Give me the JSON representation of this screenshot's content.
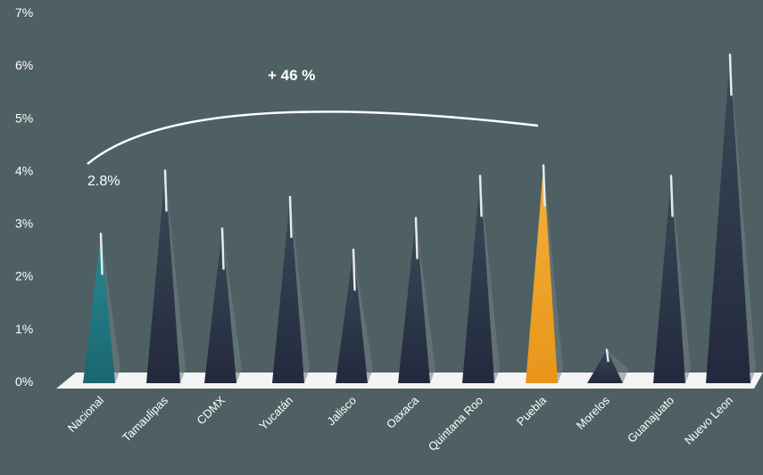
{
  "chart_data": {
    "type": "bar",
    "categories": [
      "Nacional",
      "Tamaulipas",
      "CDMX",
      "Yucatán",
      "Jalisco",
      "Oaxaca",
      "Quintana Roo",
      "Puebla",
      "Morelos",
      "Guanajuato",
      "Nuevo Leon"
    ],
    "values": [
      2.8,
      4.0,
      2.9,
      3.5,
      2.5,
      3.1,
      3.9,
      4.1,
      0.6,
      3.9,
      6.2
    ],
    "ylim": [
      0,
      7
    ],
    "yticks": [
      "0%",
      "1%",
      "2%",
      "3%",
      "4%",
      "5%",
      "6%",
      "7%"
    ],
    "grid": false,
    "colors": {
      "background": "#4e6063",
      "default": "#2b3346",
      "nacional": "#1f6f7a",
      "puebla": "#f0a023"
    },
    "annotations": {
      "nacional_label": "2.8%",
      "growth_label": "+ 46 %"
    }
  }
}
